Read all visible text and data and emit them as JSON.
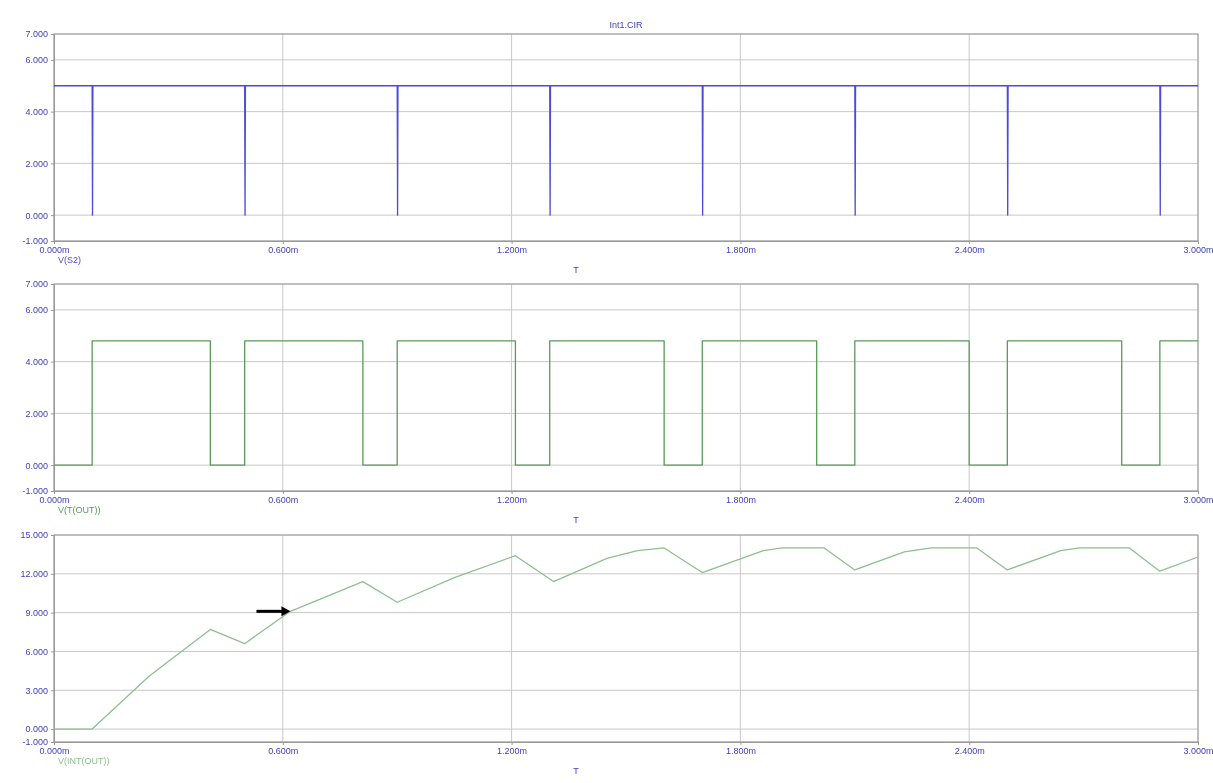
{
  "chart_data": [
    {
      "type": "line",
      "title": "Int1.CIR",
      "xlabel": "T",
      "legend": "bottom left",
      "grid": true,
      "xlim": [
        0,
        3
      ],
      "xticks": [
        {
          "value": 0,
          "label": "0.000m"
        },
        {
          "value": 0.6,
          "label": "0.600m"
        },
        {
          "value": 1.2,
          "label": "1.200m"
        },
        {
          "value": 1.8,
          "label": "1.800m"
        },
        {
          "value": 2.4,
          "label": "2.400m"
        },
        {
          "value": 3,
          "label": "3.000m"
        }
      ],
      "ylim": [
        -1,
        7
      ],
      "yticks": [
        {
          "value": 7,
          "label": "7.000"
        },
        {
          "value": 6,
          "label": "6.000"
        },
        {
          "value": 4,
          "label": "4.000"
        },
        {
          "value": 2,
          "label": "2.000"
        },
        {
          "value": 0,
          "label": "0.000"
        },
        {
          "value": -1,
          "label": "-1.000"
        }
      ],
      "series": [
        {
          "name": "V(S2)",
          "color": "#4b4bd8",
          "x": [
            0,
            0.1,
            0.101,
            0.102,
            0.5,
            0.501,
            0.502,
            0.9,
            0.901,
            0.902,
            1.3,
            1.301,
            1.302,
            1.7,
            1.701,
            1.702,
            2.1,
            2.101,
            2.102,
            2.5,
            2.501,
            2.502,
            2.9,
            2.901,
            2.902,
            3
          ],
          "values": [
            5,
            5,
            0,
            5,
            5,
            0,
            5,
            5,
            0,
            5,
            5,
            0,
            5,
            5,
            0,
            5,
            5,
            0,
            5,
            5,
            0,
            5,
            5,
            0,
            5,
            5
          ]
        }
      ]
    },
    {
      "type": "line",
      "xlabel": "T",
      "legend": "bottom left",
      "grid": true,
      "xlim": [
        0,
        3
      ],
      "xticks": [
        {
          "value": 0,
          "label": "0.000m"
        },
        {
          "value": 0.6,
          "label": "0.600m"
        },
        {
          "value": 1.2,
          "label": "1.200m"
        },
        {
          "value": 1.8,
          "label": "1.800m"
        },
        {
          "value": 2.4,
          "label": "2.400m"
        },
        {
          "value": 3,
          "label": "3.000m"
        }
      ],
      "ylim": [
        -1,
        7
      ],
      "yticks": [
        {
          "value": 7,
          "label": "7.000"
        },
        {
          "value": 6,
          "label": "6.000"
        },
        {
          "value": 4,
          "label": "4.000"
        },
        {
          "value": 2,
          "label": "2.000"
        },
        {
          "value": 0,
          "label": "0.000"
        },
        {
          "value": -1,
          "label": "-1.000"
        }
      ],
      "series": [
        {
          "name": "V(T(OUT))",
          "color": "#5a9a5a",
          "x": [
            0,
            0.1,
            0.1,
            0.41,
            0.41,
            0.5,
            0.5,
            0.81,
            0.81,
            0.9,
            0.9,
            1.21,
            1.21,
            1.3,
            1.3,
            1.6,
            1.6,
            1.7,
            1.7,
            2.0,
            2.0,
            2.1,
            2.1,
            2.4,
            2.4,
            2.5,
            2.5,
            2.8,
            2.8,
            2.9,
            2.9,
            3
          ],
          "values": [
            0,
            0,
            4.8,
            4.8,
            0,
            0,
            4.8,
            4.8,
            0,
            0,
            4.8,
            4.8,
            0,
            0,
            4.8,
            4.8,
            0,
            0,
            4.8,
            4.8,
            0,
            0,
            4.8,
            4.8,
            0,
            0,
            4.8,
            4.8,
            0,
            0,
            4.8,
            4.8
          ]
        }
      ]
    },
    {
      "type": "line",
      "xlabel": "T",
      "legend": "bottom left",
      "grid": true,
      "xlim": [
        0,
        3
      ],
      "xticks": [
        {
          "value": 0,
          "label": "0.000m"
        },
        {
          "value": 0.6,
          "label": "0.600m"
        },
        {
          "value": 1.2,
          "label": "1.200m"
        },
        {
          "value": 1.8,
          "label": "1.800m"
        },
        {
          "value": 2.4,
          "label": "2.400m"
        },
        {
          "value": 3,
          "label": "3.000m"
        }
      ],
      "ylim": [
        -1,
        15
      ],
      "yticks": [
        {
          "value": 15,
          "label": "15.000"
        },
        {
          "value": 12,
          "label": "12.000"
        },
        {
          "value": 9,
          "label": "9.000"
        },
        {
          "value": 6,
          "label": "6.000"
        },
        {
          "value": 3,
          "label": "3.000"
        },
        {
          "value": 0,
          "label": "0.000"
        },
        {
          "value": -1,
          "label": "-1.000"
        }
      ],
      "series": [
        {
          "name": "V(INT(OUT))",
          "color": "#8cc08c",
          "x": [
            0,
            0.1,
            0.25,
            0.41,
            0.5,
            0.62,
            0.81,
            0.9,
            1.05,
            1.21,
            1.31,
            1.45,
            1.53,
            1.6,
            1.7,
            1.86,
            1.91,
            2.02,
            2.1,
            2.23,
            2.3,
            2.42,
            2.5,
            2.64,
            2.69,
            2.82,
            2.9,
            3
          ],
          "values": [
            0,
            0,
            4.1,
            7.7,
            6.6,
            9.1,
            11.4,
            9.8,
            11.7,
            13.4,
            11.4,
            13.2,
            13.8,
            14.0,
            12.1,
            13.8,
            14.0,
            14.0,
            12.3,
            13.7,
            14.0,
            14.0,
            12.3,
            13.8,
            14.0,
            14.0,
            12.2,
            13.3
          ]
        }
      ]
    }
  ]
}
